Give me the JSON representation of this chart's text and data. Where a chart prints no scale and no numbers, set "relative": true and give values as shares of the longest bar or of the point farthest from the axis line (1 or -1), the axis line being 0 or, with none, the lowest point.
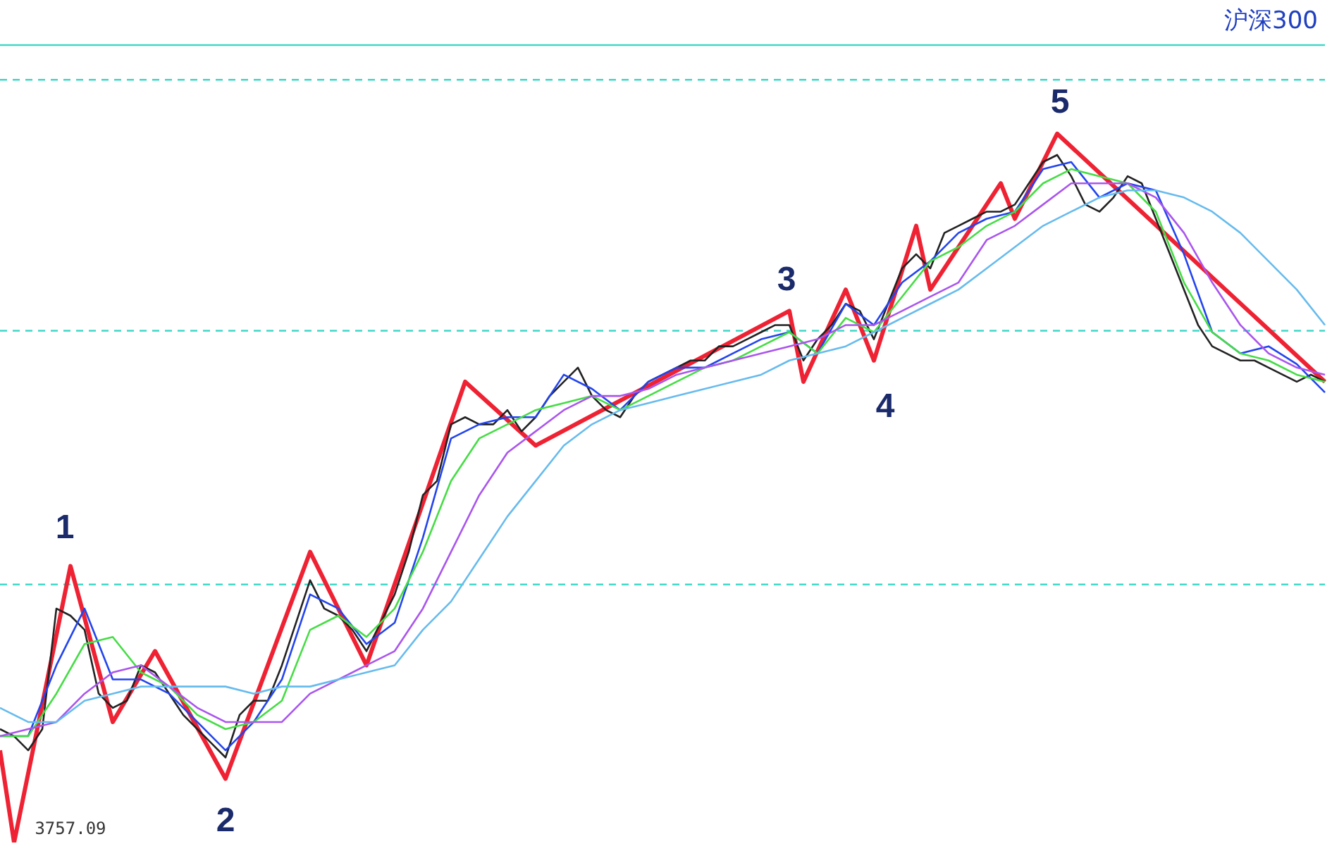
{
  "chart_data": {
    "type": "line",
    "title": "沪深300",
    "relative": true,
    "marker": "none",
    "line_style": "solid",
    "categories": [
      null,
      null,
      null,
      null,
      null,
      null,
      null,
      null,
      null,
      null,
      null,
      null,
      null,
      null,
      null,
      null,
      null,
      null,
      null,
      null,
      null,
      null,
      null,
      null,
      null,
      null,
      null,
      null,
      null,
      null,
      null,
      null,
      null,
      null,
      null,
      null,
      null,
      null,
      null,
      null,
      null,
      null,
      null,
      null,
      null,
      null,
      null,
      null,
      null,
      null,
      null,
      null,
      null,
      null,
      null,
      null,
      null,
      null,
      null,
      null,
      null,
      null,
      null,
      null,
      null,
      null,
      null,
      null,
      null,
      null,
      null,
      null,
      null,
      null,
      null,
      null,
      null,
      null,
      null,
      null,
      null,
      null,
      null,
      null,
      null,
      null,
      null,
      null,
      null,
      null,
      null,
      null,
      null,
      null,
      null
    ],
    "series": [
      {
        "color": "#66bbee",
        "values": [
          0.19,
          null,
          0.17,
          null,
          0.17,
          null,
          0.2,
          null,
          0.21,
          null,
          0.22,
          null,
          0.22,
          null,
          0.22,
          null,
          0.22,
          null,
          0.21,
          null,
          0.22,
          null,
          0.22,
          null,
          0.23,
          null,
          0.24,
          null,
          0.25,
          null,
          0.3,
          null,
          0.34,
          null,
          0.4,
          null,
          0.46,
          null,
          0.51,
          null,
          0.56,
          null,
          0.59,
          null,
          0.61,
          null,
          0.62,
          null,
          0.63,
          null,
          0.64,
          null,
          0.65,
          null,
          0.66,
          null,
          0.68,
          null,
          0.69,
          null,
          0.7,
          null,
          0.72,
          null,
          0.74,
          null,
          0.76,
          null,
          0.78,
          null,
          0.81,
          null,
          0.84,
          null,
          0.87,
          null,
          0.89,
          null,
          0.91,
          null,
          0.92,
          null,
          0.92,
          null,
          0.91,
          null,
          0.89,
          null,
          0.86,
          null,
          0.82,
          null,
          0.78,
          null,
          0.73
        ]
      },
      {
        "color": "#aa55ee",
        "values": [
          0.15,
          null,
          0.16,
          null,
          0.17,
          null,
          0.21,
          null,
          0.24,
          null,
          0.25,
          null,
          0.22,
          null,
          0.19,
          null,
          0.17,
          null,
          0.17,
          null,
          0.17,
          null,
          0.21,
          null,
          0.23,
          null,
          0.25,
          null,
          0.27,
          null,
          0.33,
          null,
          0.41,
          null,
          0.49,
          null,
          0.55,
          null,
          0.58,
          null,
          0.61,
          null,
          0.63,
          null,
          0.63,
          null,
          0.64,
          null,
          0.66,
          null,
          0.67,
          null,
          0.68,
          null,
          0.69,
          null,
          0.7,
          null,
          0.71,
          null,
          0.73,
          null,
          0.73,
          null,
          0.75,
          null,
          0.77,
          null,
          0.79,
          null,
          0.85,
          null,
          0.87,
          null,
          0.9,
          null,
          0.93,
          null,
          0.93,
          null,
          0.93,
          null,
          0.91,
          null,
          0.86,
          null,
          0.79,
          null,
          0.73,
          null,
          0.69,
          null,
          0.67,
          null,
          0.66
        ]
      },
      {
        "color": "#44dd44",
        "values": [
          0.15,
          null,
          0.15,
          null,
          0.21,
          null,
          0.28,
          null,
          0.29,
          null,
          0.24,
          null,
          0.22,
          null,
          0.18,
          null,
          0.16,
          null,
          0.17,
          null,
          0.2,
          null,
          0.3,
          null,
          0.32,
          null,
          0.29,
          null,
          0.33,
          null,
          0.41,
          null,
          0.51,
          null,
          0.57,
          null,
          0.59,
          null,
          0.61,
          null,
          0.62,
          null,
          0.63,
          null,
          0.61,
          null,
          0.63,
          null,
          0.65,
          null,
          0.67,
          null,
          0.68,
          null,
          0.7,
          null,
          0.72,
          null,
          0.69,
          null,
          0.74,
          null,
          0.72,
          null,
          0.77,
          null,
          0.82,
          null,
          0.84,
          null,
          0.87,
          null,
          0.89,
          null,
          0.93,
          null,
          0.95,
          null,
          0.94,
          null,
          0.93,
          null,
          0.89,
          null,
          0.79,
          null,
          0.72,
          null,
          0.69,
          null,
          0.68,
          null,
          0.66,
          null,
          0.65
        ]
      },
      {
        "color": "#2244ee",
        "values": [
          0.15,
          null,
          0.15,
          null,
          0.25,
          null,
          0.33,
          null,
          0.23,
          null,
          0.23,
          null,
          0.21,
          null,
          0.17,
          null,
          0.13,
          null,
          0.17,
          null,
          0.23,
          null,
          0.35,
          null,
          0.33,
          null,
          0.28,
          null,
          0.31,
          null,
          0.43,
          null,
          0.57,
          null,
          0.59,
          null,
          0.6,
          null,
          0.6,
          null,
          0.66,
          null,
          0.64,
          null,
          0.61,
          null,
          0.65,
          null,
          0.67,
          null,
          0.67,
          null,
          0.69,
          null,
          0.71,
          null,
          0.72,
          null,
          0.69,
          null,
          0.76,
          null,
          0.73,
          null,
          0.79,
          null,
          0.82,
          null,
          0.86,
          null,
          0.88,
          null,
          0.89,
          null,
          0.95,
          null,
          0.96,
          null,
          0.91,
          null,
          0.93,
          null,
          0.92,
          null,
          0.83,
          null,
          0.72,
          null,
          0.69,
          null,
          0.7,
          null,
          0.675,
          null,
          0.635
        ]
      },
      {
        "color": "#222222",
        "values": [
          0.16,
          0.15,
          0.13,
          0.16,
          0.33,
          0.32,
          0.3,
          0.21,
          0.19,
          0.2,
          0.25,
          0.24,
          0.21,
          0.18,
          0.16,
          0.14,
          0.12,
          0.18,
          0.2,
          0.2,
          0.25,
          0.31,
          0.37,
          0.33,
          0.32,
          0.3,
          0.27,
          0.31,
          0.35,
          0.41,
          0.49,
          0.51,
          0.59,
          0.6,
          0.59,
          0.59,
          0.61,
          0.58,
          0.6,
          0.63,
          0.65,
          0.67,
          0.63,
          0.61,
          0.6,
          0.63,
          0.65,
          0.66,
          0.67,
          0.68,
          0.68,
          0.7,
          0.7,
          0.71,
          0.72,
          0.73,
          0.73,
          0.68,
          0.71,
          0.73,
          0.76,
          0.75,
          0.71,
          0.76,
          0.81,
          0.83,
          0.81,
          0.86,
          0.87,
          0.88,
          0.89,
          0.89,
          0.9,
          0.93,
          0.96,
          0.97,
          0.94,
          0.9,
          0.89,
          0.91,
          0.94,
          0.93,
          0.88,
          0.83,
          0.78,
          0.73,
          0.7,
          0.69,
          0.68,
          0.68,
          0.67,
          0.66,
          0.65,
          0.66,
          0.65
        ]
      },
      {
        "color": "#ee2233",
        "values": [
          0.13,
          0,
          null,
          null,
          null,
          0.39,
          null,
          null,
          0.17,
          null,
          null,
          0.27,
          null,
          null,
          null,
          null,
          0.09,
          null,
          null,
          null,
          null,
          null,
          0.41,
          null,
          null,
          null,
          0.25,
          null,
          null,
          null,
          null,
          null,
          null,
          0.65,
          null,
          null,
          null,
          null,
          0.56,
          null,
          null,
          null,
          null,
          null,
          null,
          null,
          null,
          null,
          null,
          null,
          null,
          null,
          null,
          null,
          null,
          null,
          0.75,
          0.65,
          null,
          null,
          0.78,
          null,
          0.68,
          null,
          null,
          0.87,
          0.78,
          null,
          null,
          null,
          null,
          0.93,
          0.88,
          null,
          null,
          1,
          null,
          null,
          null,
          null,
          null,
          null,
          null,
          null,
          null,
          null,
          null,
          null,
          null,
          null,
          null,
          null,
          null,
          null,
          0.65
        ]
      }
    ],
    "ref_lines": [
      {
        "axis": "y",
        "value": 1.125,
        "color": "#40d8c8",
        "line_style": "solid"
      },
      {
        "axis": "y",
        "value": 1.076,
        "color": "#40d8c8",
        "line_style": "dashed"
      },
      {
        "axis": "y",
        "value": 0.722,
        "color": "#40d8c8",
        "line_style": "dashed"
      },
      {
        "axis": "y",
        "value": 0.364,
        "color": "#40d8c8",
        "line_style": "dashed"
      }
    ],
    "annotations": [
      "1",
      "2",
      "3",
      "4",
      "5",
      "3757.09"
    ]
  }
}
